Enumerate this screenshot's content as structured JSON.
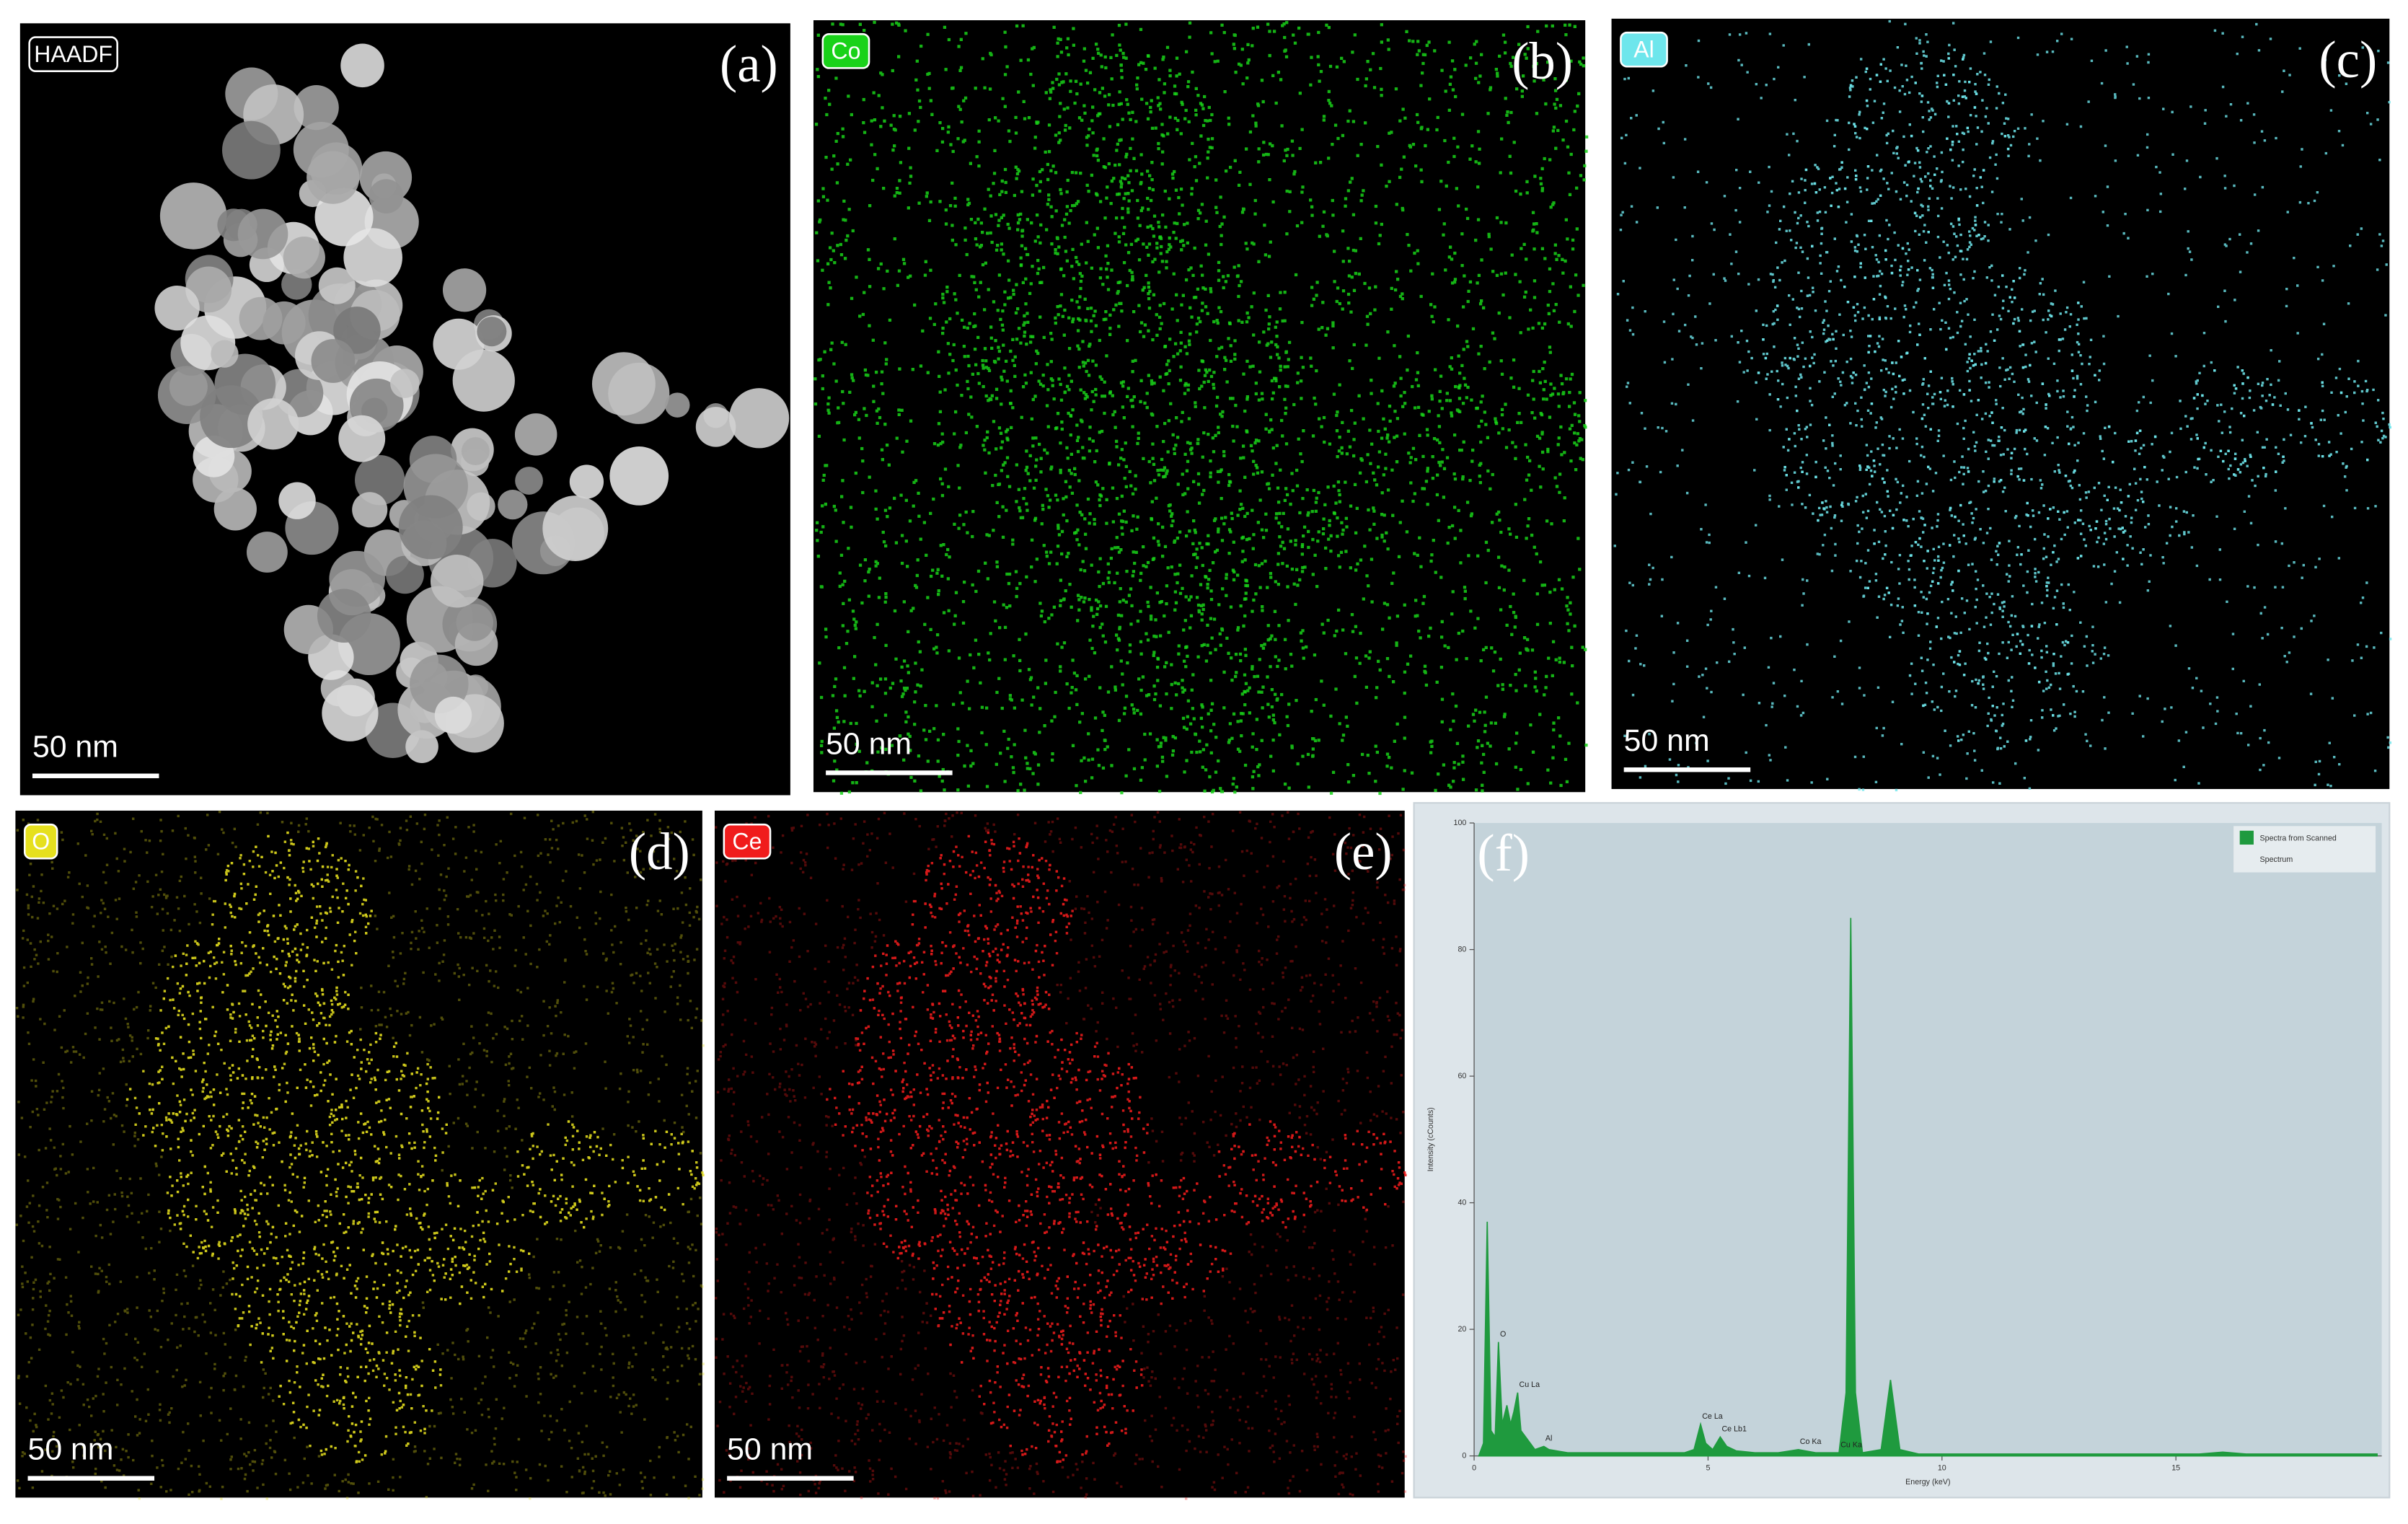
{
  "panels": [
    {
      "label": "(a)",
      "tag": "HAADF",
      "scale_bar": "50 nm",
      "color": "#d8d8d8"
    },
    {
      "label": "(b)",
      "tag": "Co",
      "scale_bar": "50 nm",
      "color": "#19d219"
    },
    {
      "label": "(c)",
      "tag": "Al",
      "scale_bar": "50 nm",
      "color": "#6ee6ec"
    },
    {
      "label": "(d)",
      "tag": "O",
      "scale_bar": "50 nm",
      "color": "#e6e01e"
    },
    {
      "label": "(e)",
      "tag": "Ce",
      "scale_bar": "50 nm",
      "color": "#f01c1c"
    }
  ],
  "chart_data": {
    "type": "area",
    "panel_label": "(f)",
    "x_label": "Energy (keV)",
    "y_label": "Intensity (cCounts)",
    "xlim": [
      0,
      19.4
    ],
    "ylim": [
      0,
      100
    ],
    "xticks": [
      0,
      5,
      10,
      15
    ],
    "yticks": [
      0,
      20,
      40,
      60,
      80,
      100
    ],
    "x": [
      0.1,
      0.2,
      0.28,
      0.36,
      0.45,
      0.52,
      0.6,
      0.7,
      0.78,
      0.85,
      0.93,
      1.0,
      1.1,
      1.3,
      1.49,
      1.6,
      2.0,
      4.5,
      4.7,
      4.84,
      4.95,
      5.1,
      5.26,
      5.4,
      5.6,
      6.0,
      6.5,
      6.93,
      7.3,
      7.8,
      7.95,
      8.05,
      8.15,
      8.3,
      8.7,
      8.9,
      9.1,
      9.5,
      12,
      15.5,
      16,
      16.5,
      19.3
    ],
    "series": [
      {
        "name": "Spectra from Scanned",
        "color": "#1f9a3e",
        "values": [
          0,
          2,
          37,
          4,
          3,
          18,
          5,
          8,
          5,
          7,
          10,
          4,
          3,
          1,
          1.5,
          1,
          0.5,
          0.5,
          1,
          5,
          2,
          1,
          3,
          1.5,
          0.8,
          0.5,
          0.5,
          1,
          0.5,
          0.5,
          10,
          85,
          10,
          0.5,
          1,
          12,
          1,
          0.3,
          0.3,
          0.3,
          0.6,
          0.3,
          0.3
        ]
      }
    ],
    "legend": "top-right",
    "legend_subtitle": "Spectrum",
    "annotations": [
      {
        "text": "O",
        "x": 0.52,
        "y": 18
      },
      {
        "text": "Cu La",
        "x": 0.93,
        "y": 10
      },
      {
        "text": "Al",
        "x": 1.49,
        "y": 1.5
      },
      {
        "text": "Ce La",
        "x": 4.84,
        "y": 5
      },
      {
        "text": "Ce Lb1",
        "x": 5.26,
        "y": 3
      },
      {
        "text": "Co Ka",
        "x": 6.93,
        "y": 1
      },
      {
        "text": "Cu Ka",
        "x": 7.8,
        "y": 0.5
      }
    ]
  }
}
